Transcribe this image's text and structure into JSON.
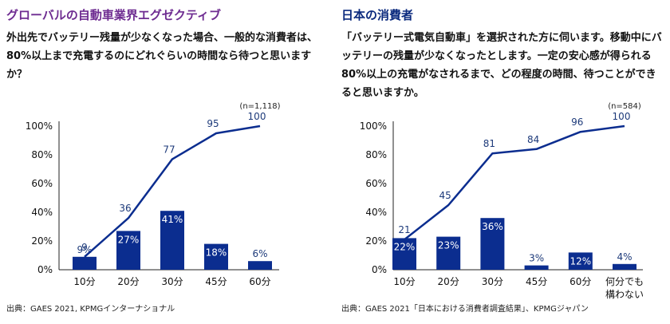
{
  "panels": {
    "left": {
      "title": "グローバルの自動車業界エグゼクティブ",
      "question": "外出先でバッテリー残量が少なくなった場合、一般的な消費者は、80%以上まで充電するのにどれぐらいの時間なら待つと思いますか？",
      "source": "出典：GAES 2021, KPMGインターナショナル"
    },
    "right": {
      "title": "日本の消費者",
      "question": "「バッテリー式電気自動車」を選択された方に伺います。移動中にバッテリーの残量が少なくなったとします。一定の安心感が得られる80%以上の充電がなされるまで、どの程度の時間、待つことができると思いますか。",
      "source": "出典：GAES 2021「日本における消費者調査結果」、KPMGジャパン"
    }
  },
  "colors": {
    "bar": "#0b2d8f",
    "line": "#0b2d8f",
    "label": "#1d3a7a",
    "bar_label": "#ffffff"
  },
  "chart_data": [
    {
      "type": "bar",
      "note": "(n=1,118)",
      "categories": [
        "10分",
        "20分",
        "30分",
        "45分",
        "60分"
      ],
      "yticks": [
        "100%",
        "80%",
        "60%",
        "40%",
        "20%",
        "0%"
      ],
      "ylim": [
        0,
        100
      ],
      "series": [
        {
          "values": [
            9,
            27,
            41,
            18,
            6
          ],
          "labels": [
            "9%",
            "27%",
            "41%",
            "18%",
            "6%"
          ]
        },
        {
          "values": [
            9,
            36,
            77,
            95,
            100
          ],
          "labels": [
            "9",
            "36",
            "77",
            "95",
            "100"
          ]
        }
      ]
    },
    {
      "type": "bar",
      "note": "(n=584)",
      "categories": [
        "10分",
        "20分",
        "30分",
        "45分",
        "60分",
        "何分でも\n構わない"
      ],
      "yticks": [
        "100%",
        "80%",
        "60%",
        "40%",
        "20%",
        "0%"
      ],
      "ylim": [
        0,
        100
      ],
      "series": [
        {
          "values": [
            22,
            23,
            36,
            3,
            12,
            4
          ],
          "labels": [
            "22%",
            "23%",
            "36%",
            "3%",
            "12%",
            "4%"
          ]
        },
        {
          "values": [
            21,
            45,
            81,
            84,
            96,
            100
          ],
          "labels": [
            "21",
            "45",
            "81",
            "84",
            "96",
            "100"
          ]
        }
      ]
    }
  ]
}
